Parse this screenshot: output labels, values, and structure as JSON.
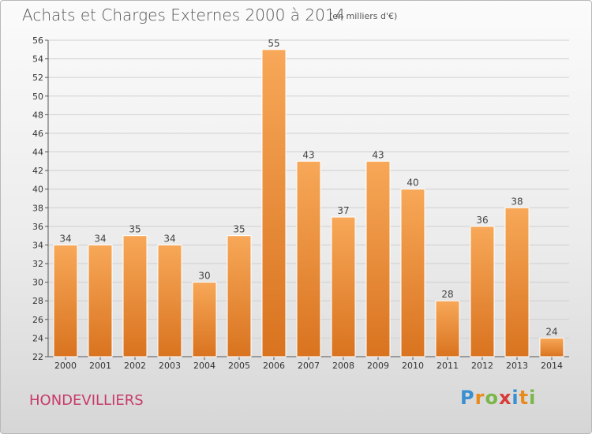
{
  "header": {
    "title": "Achats et Charges Externes 2000 à 2014",
    "subtitle": "(en milliers d'€)"
  },
  "commune": "HONDEVILLIERS",
  "logo": {
    "text": "Proxiti"
  },
  "colors": {
    "bar_light": "#f7a858",
    "bar_dark": "#d9731f",
    "grid": "#cfcfcf",
    "commune_text": "#c83a6b"
  },
  "chart_data": {
    "type": "bar",
    "title": "Achats et Charges Externes 2000 à 2014",
    "subtitle": "(en milliers d'€)",
    "xlabel": "",
    "ylabel": "",
    "categories": [
      "2000",
      "2001",
      "2002",
      "2003",
      "2004",
      "2005",
      "2006",
      "2007",
      "2008",
      "2009",
      "2010",
      "2011",
      "2012",
      "2013",
      "2014"
    ],
    "values": [
      34,
      34,
      35,
      34,
      30,
      35,
      55,
      43,
      37,
      43,
      40,
      28,
      36,
      38,
      24
    ],
    "ylim": [
      22,
      56
    ],
    "ytick_step": 2,
    "grid": true,
    "legend": "none"
  }
}
